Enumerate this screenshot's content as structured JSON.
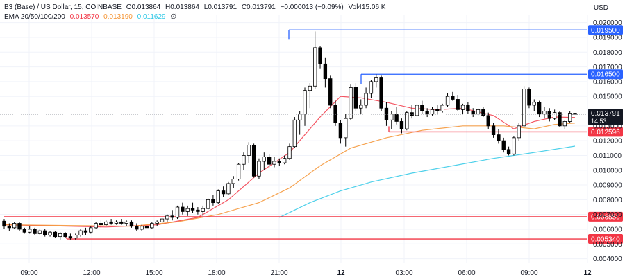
{
  "header": {
    "symbol": "B3 (Base) / US Dollar, 15, COINBASE",
    "o_label": "O",
    "o_value": "0.013864",
    "h_label": "H",
    "h_value": "0.013864",
    "l_label": "L",
    "l_value": "0.013791",
    "c_label": "C",
    "c_value": "0.013791",
    "change": "−0.000013 (−0.09%)",
    "vol_label": "Vol",
    "vol_value": "415.06 K",
    "ema_label": "EMA 20/50/100/200",
    "ema20": "0.013570",
    "ema50": "0.013190",
    "ema100": "0.011629",
    "ema200": "∅",
    "currency": "USD"
  },
  "colors": {
    "up": "#ffffff",
    "down": "#000000",
    "wick": "#000000",
    "ema20": "#f23645",
    "ema50": "#f59331",
    "ema100": "#2ec8e6",
    "resistance": "#2962ff",
    "support": "#f23645",
    "price_tag": "#131722",
    "grid": "#f0f3fa"
  },
  "chart_data": {
    "type": "candlestick",
    "ylim": [
      0.0037,
      0.0205
    ],
    "y_ticks": [
      "0.020000",
      "0.019000",
      "0.018000",
      "0.017000",
      "0.016000",
      "0.015000",
      "0.014000",
      "0.013000",
      "0.012000",
      "0.011000",
      "0.010000",
      "0.009000",
      "0.008000",
      "0.007000",
      "0.006000",
      "0.005000",
      "0.004000"
    ],
    "x_ticks": [
      "09:00",
      "12:00",
      "15:00",
      "18:00",
      "21:00",
      "12",
      "03:00",
      "06:00",
      "09:00",
      "12"
    ],
    "current_price": "0.013791",
    "countdown": "14:53",
    "levels": [
      {
        "value": 0.0195,
        "label": "0.019500",
        "kind": "resistance"
      },
      {
        "value": 0.0165,
        "label": "0.016500",
        "kind": "resistance"
      },
      {
        "value": 0.012596,
        "label": "0.012596",
        "kind": "support"
      },
      {
        "value": 0.00685,
        "label": "0.006850",
        "kind": "support"
      },
      {
        "value": 0.00534,
        "label": "0.005340",
        "kind": "support"
      }
    ],
    "candles": [
      [
        0.00655,
        0.0067,
        0.006,
        0.0062
      ],
      [
        0.0062,
        0.0064,
        0.0059,
        0.0061
      ],
      [
        0.0061,
        0.0065,
        0.006,
        0.0064
      ],
      [
        0.0064,
        0.0065,
        0.0059,
        0.006
      ],
      [
        0.006,
        0.0061,
        0.0057,
        0.0058
      ],
      [
        0.0058,
        0.0062,
        0.0057,
        0.006
      ],
      [
        0.006,
        0.0061,
        0.0056,
        0.0057
      ],
      [
        0.0057,
        0.006,
        0.0056,
        0.0059
      ],
      [
        0.0059,
        0.006,
        0.0055,
        0.0056
      ],
      [
        0.0056,
        0.0059,
        0.0055,
        0.0058
      ],
      [
        0.0058,
        0.0059,
        0.0054,
        0.0055
      ],
      [
        0.0055,
        0.0058,
        0.0053,
        0.0057
      ],
      [
        0.0057,
        0.0058,
        0.0054,
        0.0055
      ],
      [
        0.0055,
        0.0057,
        0.0053,
        0.0054
      ],
      [
        0.0054,
        0.0057,
        0.0053,
        0.0056
      ],
      [
        0.0056,
        0.006,
        0.0055,
        0.0059
      ],
      [
        0.0059,
        0.0061,
        0.0056,
        0.0058
      ],
      [
        0.0058,
        0.0062,
        0.0057,
        0.0061
      ],
      [
        0.0061,
        0.0065,
        0.006,
        0.0064
      ],
      [
        0.0064,
        0.0066,
        0.0061,
        0.0063
      ],
      [
        0.0063,
        0.0066,
        0.0062,
        0.0065
      ],
      [
        0.0065,
        0.0067,
        0.0063,
        0.0064
      ],
      [
        0.0064,
        0.0066,
        0.0063,
        0.0065
      ],
      [
        0.0065,
        0.0067,
        0.0063,
        0.0064
      ],
      [
        0.0064,
        0.0066,
        0.0062,
        0.0065
      ],
      [
        0.0065,
        0.0066,
        0.0061,
        0.0062
      ],
      [
        0.0062,
        0.0064,
        0.0059,
        0.006
      ],
      [
        0.006,
        0.0063,
        0.0059,
        0.0062
      ],
      [
        0.0062,
        0.0064,
        0.006,
        0.0061
      ],
      [
        0.0061,
        0.0065,
        0.006,
        0.0064
      ],
      [
        0.0064,
        0.0066,
        0.0062,
        0.0065
      ],
      [
        0.0065,
        0.0068,
        0.0063,
        0.0067
      ],
      [
        0.0067,
        0.007,
        0.0065,
        0.0069
      ],
      [
        0.0069,
        0.0073,
        0.0066,
        0.0068
      ],
      [
        0.0068,
        0.0076,
        0.0067,
        0.0075
      ],
      [
        0.0075,
        0.0078,
        0.007,
        0.0072
      ],
      [
        0.0072,
        0.0076,
        0.0069,
        0.0074
      ],
      [
        0.0074,
        0.0078,
        0.0071,
        0.0073
      ],
      [
        0.0073,
        0.0075,
        0.007,
        0.0072
      ],
      [
        0.0072,
        0.0076,
        0.0069,
        0.0074
      ],
      [
        0.0074,
        0.0081,
        0.0073,
        0.008
      ],
      [
        0.008,
        0.0083,
        0.0076,
        0.0078
      ],
      [
        0.0078,
        0.0087,
        0.0077,
        0.0086
      ],
      [
        0.0086,
        0.0089,
        0.0082,
        0.0084
      ],
      [
        0.0084,
        0.0092,
        0.0083,
        0.0091
      ],
      [
        0.0091,
        0.0096,
        0.0088,
        0.0094
      ],
      [
        0.0094,
        0.0105,
        0.0093,
        0.0104
      ],
      [
        0.0104,
        0.0112,
        0.01,
        0.011
      ],
      [
        0.011,
        0.0119,
        0.0105,
        0.0117
      ],
      [
        0.0117,
        0.0118,
        0.0095,
        0.0096
      ],
      [
        0.0096,
        0.0108,
        0.0094,
        0.0106
      ],
      [
        0.0106,
        0.0112,
        0.01,
        0.0109
      ],
      [
        0.0109,
        0.0111,
        0.0102,
        0.0104
      ],
      [
        0.0104,
        0.0109,
        0.0102,
        0.0106
      ],
      [
        0.0106,
        0.0108,
        0.0103,
        0.0105
      ],
      [
        0.0105,
        0.011,
        0.0104,
        0.0108
      ],
      [
        0.0108,
        0.0118,
        0.0107,
        0.0116
      ],
      [
        0.0116,
        0.0136,
        0.0115,
        0.0134
      ],
      [
        0.0134,
        0.014,
        0.0124,
        0.0138
      ],
      [
        0.0138,
        0.0156,
        0.013,
        0.0154
      ],
      [
        0.0154,
        0.0159,
        0.0142,
        0.0157
      ],
      [
        0.0157,
        0.0194,
        0.0155,
        0.0183
      ],
      [
        0.0183,
        0.0184,
        0.0169,
        0.0172
      ],
      [
        0.0172,
        0.0176,
        0.0156,
        0.0162
      ],
      [
        0.0162,
        0.0164,
        0.0142,
        0.0144
      ],
      [
        0.0144,
        0.0147,
        0.013,
        0.0132
      ],
      [
        0.0132,
        0.0134,
        0.0118,
        0.0122
      ],
      [
        0.0122,
        0.0138,
        0.0116,
        0.0135
      ],
      [
        0.0135,
        0.0158,
        0.0134,
        0.0156
      ],
      [
        0.0156,
        0.0159,
        0.014,
        0.0142
      ],
      [
        0.0142,
        0.0148,
        0.0138,
        0.0144
      ],
      [
        0.0144,
        0.0156,
        0.0142,
        0.0152
      ],
      [
        0.0152,
        0.0161,
        0.0149,
        0.016
      ],
      [
        0.016,
        0.0165,
        0.0156,
        0.0163
      ],
      [
        0.0163,
        0.0164,
        0.014,
        0.0142
      ],
      [
        0.0142,
        0.0146,
        0.013,
        0.0134
      ],
      [
        0.0134,
        0.014,
        0.0128,
        0.0138
      ],
      [
        0.0138,
        0.0143,
        0.0131,
        0.0133
      ],
      [
        0.0133,
        0.0135,
        0.0125,
        0.0128
      ],
      [
        0.0128,
        0.014,
        0.0127,
        0.0139
      ],
      [
        0.0139,
        0.0144,
        0.0135,
        0.0137
      ],
      [
        0.0137,
        0.0145,
        0.0136,
        0.0144
      ],
      [
        0.0144,
        0.0147,
        0.0138,
        0.014
      ],
      [
        0.014,
        0.0142,
        0.0136,
        0.0138
      ],
      [
        0.0138,
        0.0143,
        0.0137,
        0.0141
      ],
      [
        0.0141,
        0.0144,
        0.0138,
        0.014
      ],
      [
        0.014,
        0.0145,
        0.0139,
        0.0144
      ],
      [
        0.0144,
        0.0152,
        0.0143,
        0.015
      ],
      [
        0.015,
        0.0153,
        0.0147,
        0.0148
      ],
      [
        0.0148,
        0.0151,
        0.014,
        0.0141
      ],
      [
        0.0141,
        0.0145,
        0.0138,
        0.0144
      ],
      [
        0.0144,
        0.0146,
        0.0138,
        0.014
      ],
      [
        0.014,
        0.0142,
        0.0136,
        0.0138
      ],
      [
        0.0138,
        0.0142,
        0.0137,
        0.0141
      ],
      [
        0.0141,
        0.0143,
        0.0136,
        0.0137
      ],
      [
        0.0137,
        0.0139,
        0.0128,
        0.013
      ],
      [
        0.013,
        0.0132,
        0.0122,
        0.0124
      ],
      [
        0.0124,
        0.0128,
        0.0118,
        0.012
      ],
      [
        0.012,
        0.0122,
        0.0112,
        0.0114
      ],
      [
        0.0114,
        0.0116,
        0.011,
        0.0111
      ],
      [
        0.0111,
        0.0123,
        0.011,
        0.0122
      ],
      [
        0.0122,
        0.0132,
        0.012,
        0.013
      ],
      [
        0.013,
        0.0157,
        0.0129,
        0.0155
      ],
      [
        0.0155,
        0.0156,
        0.0142,
        0.0144
      ],
      [
        0.0144,
        0.0148,
        0.014,
        0.0146
      ],
      [
        0.0146,
        0.0147,
        0.0136,
        0.0138
      ],
      [
        0.0138,
        0.0143,
        0.0135,
        0.014
      ],
      [
        0.014,
        0.0142,
        0.0133,
        0.0135
      ],
      [
        0.0135,
        0.0141,
        0.0134,
        0.0139
      ],
      [
        0.0139,
        0.014,
        0.0129,
        0.013
      ],
      [
        0.013,
        0.0134,
        0.0128,
        0.0133
      ],
      [
        0.0133,
        0.014,
        0.0132,
        0.01386
      ],
      [
        0.01386,
        0.01386,
        0.01379,
        0.01379
      ]
    ],
    "ema_series": [
      {
        "points": [
          [
            0,
            0.0063
          ],
          [
            20,
            0.00615
          ],
          [
            30,
            0.0063
          ],
          [
            38,
            0.0068
          ],
          [
            44,
            0.008
          ],
          [
            50,
            0.0098
          ],
          [
            56,
            0.0112
          ],
          [
            62,
            0.0136
          ],
          [
            66,
            0.015
          ],
          [
            70,
            0.0149
          ],
          [
            75,
            0.0146
          ],
          [
            80,
            0.0142
          ],
          [
            85,
            0.0141
          ],
          [
            90,
            0.0142
          ],
          [
            96,
            0.0137
          ],
          [
            100,
            0.0128
          ],
          [
            104,
            0.0133
          ],
          [
            108,
            0.0136
          ],
          [
            112,
            0.01357
          ]
        ]
      },
      {
        "points": [
          [
            0,
            0.0063
          ],
          [
            25,
            0.0062
          ],
          [
            34,
            0.0065
          ],
          [
            42,
            0.007
          ],
          [
            50,
            0.0078
          ],
          [
            56,
            0.0088
          ],
          [
            62,
            0.0103
          ],
          [
            68,
            0.0115
          ],
          [
            75,
            0.0122
          ],
          [
            82,
            0.0127
          ],
          [
            90,
            0.013
          ],
          [
            98,
            0.013
          ],
          [
            104,
            0.0128
          ],
          [
            108,
            0.0131
          ],
          [
            112,
            0.01319
          ]
        ]
      },
      {
        "points": [
          [
            54,
            0.0068
          ],
          [
            60,
            0.0078
          ],
          [
            66,
            0.0086
          ],
          [
            72,
            0.0092
          ],
          [
            80,
            0.0098
          ],
          [
            88,
            0.0103
          ],
          [
            96,
            0.0108
          ],
          [
            104,
            0.0112
          ],
          [
            112,
            0.01163
          ]
        ]
      }
    ]
  }
}
